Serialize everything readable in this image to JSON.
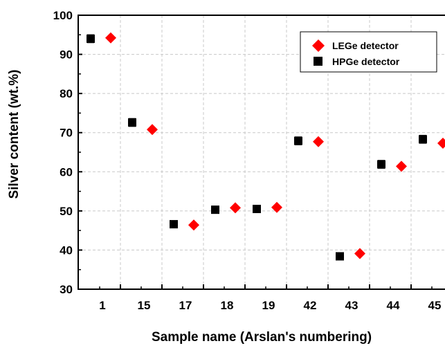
{
  "chart_data": {
    "type": "scatter",
    "categories": [
      "1",
      "15",
      "17",
      "18",
      "19",
      "42",
      "43",
      "44",
      "45"
    ],
    "xlabel": "Sample name (Arslan's numbering)",
    "ylabel": "Silver content (wt.%)",
    "ylim": [
      30,
      100
    ],
    "yticks": [
      30,
      40,
      50,
      60,
      70,
      80,
      90,
      100
    ],
    "grid": "dashed",
    "legend_position": "top-right",
    "series": [
      {
        "name": "LEGe  detector",
        "marker": "diamond",
        "color": "#ff0000",
        "values": [
          94.2,
          70.8,
          46.4,
          50.8,
          50.9,
          67.7,
          39.1,
          61.4,
          67.3
        ]
      },
      {
        "name": "HPGe  detector",
        "marker": "square",
        "color": "#000000",
        "values": [
          94.0,
          72.6,
          46.6,
          50.3,
          50.5,
          67.9,
          38.4,
          61.9,
          68.3
        ],
        "error": [
          1.0,
          1.0,
          0.7,
          0.9,
          0.9,
          1.0,
          0.6,
          1.0,
          1.0
        ]
      }
    ]
  }
}
